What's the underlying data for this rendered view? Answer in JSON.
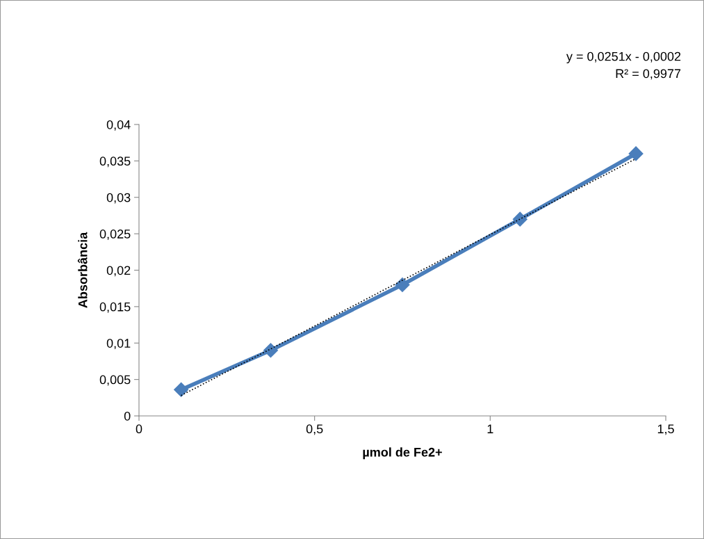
{
  "chart_data": {
    "type": "line",
    "xlabel": "µmol de Fe2+",
    "ylabel": "Absorbância",
    "x": [
      0.12,
      0.375,
      0.75,
      1.085,
      1.415
    ],
    "series": [
      {
        "color": "#4a7ebb",
        "values": [
          0.0036,
          0.009,
          0.018,
          0.027,
          0.036
        ],
        "marker": "diamond",
        "line_style": "solid"
      },
      {
        "type": "line",
        "color": "#000000",
        "x": [
          0.12,
          1.415
        ],
        "values": [
          0.0028,
          0.0353
        ],
        "marker": "none",
        "line_style": "dotted"
      }
    ],
    "annotations": [
      "y = 0,0251x - 0,0002\nR² = 0,9977"
    ],
    "xlim": [
      0,
      1.5
    ],
    "xticks": [
      {
        "value": 0,
        "label": "0"
      },
      {
        "value": 0.5,
        "label": "0,5"
      },
      {
        "value": 1,
        "label": "1"
      },
      {
        "value": 1.5,
        "label": "1,5"
      }
    ],
    "ylim": [
      0,
      0.04
    ],
    "yticks": [
      {
        "value": 0,
        "label": "0"
      },
      {
        "value": 0.005,
        "label": "0,005"
      },
      {
        "value": 0.01,
        "label": "0,01"
      },
      {
        "value": 0.015,
        "label": "0,015"
      },
      {
        "value": 0.02,
        "label": "0,02"
      },
      {
        "value": 0.025,
        "label": "0,025"
      },
      {
        "value": 0.03,
        "label": "0,03"
      },
      {
        "value": 0.035,
        "label": "0,035"
      },
      {
        "value": 0.04,
        "label": "0,04"
      }
    ],
    "grid": false,
    "legend": false
  }
}
